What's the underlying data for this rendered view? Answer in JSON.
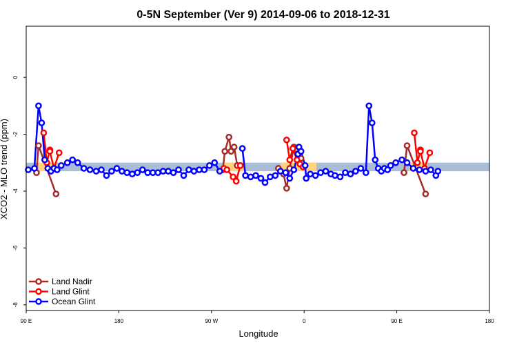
{
  "chart_data": {
    "type": "line",
    "title": "0-5N September (Ver 9)   2014-09-06 to 2018-12-31",
    "xlabel": "Longitude",
    "ylabel": "XCO2 - MLO trend (ppm)",
    "xlim": [
      90,
      450
    ],
    "ylim": [
      -8.2,
      1.8
    ],
    "x_ticks": [
      {
        "value": 90,
        "label": "90 E"
      },
      {
        "value": 180,
        "label": "180"
      },
      {
        "value": 270,
        "label": "90 W"
      },
      {
        "value": 360,
        "label": "0"
      },
      {
        "value": 450,
        "label": "90 E"
      },
      {
        "value": 540,
        "label": "180"
      }
    ],
    "y_ticks": [
      {
        "value": 0,
        "label": "0"
      },
      {
        "value": -2,
        "label": "-2"
      },
      {
        "value": -4,
        "label": "-4"
      },
      {
        "value": -6,
        "label": "-6"
      },
      {
        "value": -8,
        "label": "-8"
      }
    ],
    "x_axis_range_printed": [
      90,
      540
    ],
    "band": {
      "ymin": -3.3,
      "ymax": -3.0,
      "color": "#a9bdd9"
    },
    "band_highlights": [
      {
        "xmin": 102,
        "xmax": 120,
        "color": "#ffd27f"
      },
      {
        "xmin": 281,
        "xmax": 302,
        "color": "#ffd27f"
      },
      {
        "xmin": 337,
        "xmax": 372,
        "color": "#ffd27f"
      },
      {
        "xmin": 462,
        "xmax": 480,
        "color": "#ffd27f"
      }
    ],
    "legend": {
      "position": "bottom-left"
    },
    "series": [
      {
        "name": "Land Nadir",
        "color": "#a52a2a",
        "segments": [
          [
            [
              100,
              -3.35
            ],
            [
              102,
              -2.4
            ],
            [
              119,
              -4.1
            ]
          ],
          [
            [
              281,
              -3.25
            ],
            [
              283,
              -2.6
            ],
            [
              287,
              -2.1
            ],
            [
              289,
              -2.6
            ],
            [
              292,
              -2.45
            ],
            [
              295,
              -3.1
            ]
          ],
          [
            [
              335,
              -3.2
            ],
            [
              340,
              -3.4
            ],
            [
              343,
              -3.9
            ],
            [
              346,
              -3.2
            ],
            [
              350,
              -2.45
            ],
            [
              353,
              -2.55
            ],
            [
              355,
              -2.65
            ],
            [
              357,
              -2.85
            ]
          ],
          [
            [
              457,
              -3.35
            ],
            [
              460,
              -2.4
            ],
            [
              478,
              -4.1
            ]
          ]
        ]
      },
      {
        "name": "Land Glint",
        "color": "#ff0000",
        "segments": [
          [
            [
              107,
              -1.95
            ],
            [
              110,
              -3.0
            ],
            [
              113,
              -2.55
            ],
            [
              113,
              -2.6
            ],
            [
              117,
              -3.2
            ],
            [
              122,
              -2.65
            ]
          ],
          [
            [
              282,
              -3.2
            ],
            [
              285,
              -3.25
            ],
            [
              291,
              -3.5
            ],
            [
              294,
              -3.65
            ],
            [
              298,
              -3.1
            ]
          ],
          [
            [
              343,
              -2.2
            ],
            [
              346,
              -2.9
            ],
            [
              349,
              -2.5
            ],
            [
              353,
              -2.9
            ],
            [
              356,
              -3.05
            ],
            [
              359,
              -3.15
            ]
          ],
          [
            [
              467,
              -1.95
            ],
            [
              470,
              -3.0
            ],
            [
              473,
              -2.55
            ],
            [
              473,
              -2.6
            ],
            [
              477,
              -3.2
            ],
            [
              482,
              -2.65
            ]
          ]
        ]
      },
      {
        "name": "Ocean Glint",
        "color": "#0000ff",
        "segments": [
          [
            [
              92,
              -3.25
            ],
            [
              98,
              -3.2
            ],
            [
              102,
              -1.0
            ],
            [
              105,
              -1.6
            ],
            [
              108,
              -2.9
            ],
            [
              111,
              -3.2
            ],
            [
              114,
              -3.3
            ],
            [
              117,
              -3.2
            ],
            [
              120,
              -3.25
            ],
            [
              124,
              -3.1
            ],
            [
              130,
              -3.0
            ],
            [
              135,
              -2.9
            ],
            [
              140,
              -3.0
            ],
            [
              146,
              -3.2
            ],
            [
              152,
              -3.25
            ],
            [
              158,
              -3.3
            ],
            [
              163,
              -3.25
            ],
            [
              168,
              -3.45
            ],
            [
              173,
              -3.3
            ],
            [
              178,
              -3.2
            ],
            [
              183,
              -3.3
            ],
            [
              188,
              -3.35
            ],
            [
              193,
              -3.4
            ],
            [
              198,
              -3.35
            ],
            [
              203,
              -3.25
            ],
            [
              208,
              -3.35
            ],
            [
              213,
              -3.35
            ],
            [
              218,
              -3.35
            ],
            [
              223,
              -3.3
            ],
            [
              228,
              -3.3
            ],
            [
              233,
              -3.35
            ],
            [
              238,
              -3.25
            ],
            [
              243,
              -3.45
            ],
            [
              248,
              -3.25
            ],
            [
              253,
              -3.3
            ],
            [
              258,
              -3.25
            ],
            [
              263,
              -3.25
            ],
            [
              268,
              -3.1
            ],
            [
              273,
              -3.0
            ],
            [
              278,
              -3.3
            ]
          ],
          [
            [
              300,
              -2.5
            ],
            [
              303,
              -3.45
            ],
            [
              308,
              -3.5
            ],
            [
              313,
              -3.45
            ],
            [
              318,
              -3.55
            ],
            [
              322,
              -3.7
            ],
            [
              327,
              -3.5
            ],
            [
              332,
              -3.45
            ],
            [
              337,
              -3.3
            ],
            [
              342,
              -3.35
            ],
            [
              346,
              -3.55
            ],
            [
              350,
              -3.25
            ],
            [
              354,
              -2.7
            ]
          ],
          [
            [
              355,
              -2.45
            ],
            [
              357,
              -2.6
            ],
            [
              361,
              -3.1
            ],
            [
              362,
              -3.55
            ],
            [
              366,
              -3.4
            ],
            [
              371,
              -3.45
            ],
            [
              376,
              -3.35
            ],
            [
              381,
              -3.3
            ],
            [
              386,
              -3.4
            ],
            [
              390,
              -3.45
            ],
            [
              395,
              -3.5
            ],
            [
              400,
              -3.35
            ],
            [
              405,
              -3.4
            ],
            [
              410,
              -3.3
            ],
            [
              415,
              -3.2
            ],
            [
              420,
              -3.35
            ],
            [
              423,
              -1.0
            ],
            [
              426,
              -1.6
            ],
            [
              429,
              -2.9
            ],
            [
              432,
              -3.2
            ],
            [
              435,
              -3.3
            ],
            [
              438,
              -3.2
            ],
            [
              441,
              -3.25
            ],
            [
              444,
              -3.1
            ],
            [
              449,
              -3.0
            ],
            [
              455,
              -2.9
            ],
            [
              460,
              -3.0
            ],
            [
              466,
              -3.2
            ],
            [
              472,
              -3.25
            ],
            [
              478,
              -3.3
            ],
            [
              483,
              -3.25
            ],
            [
              488,
              -3.45
            ],
            [
              490,
              -3.3
            ]
          ]
        ]
      }
    ]
  }
}
